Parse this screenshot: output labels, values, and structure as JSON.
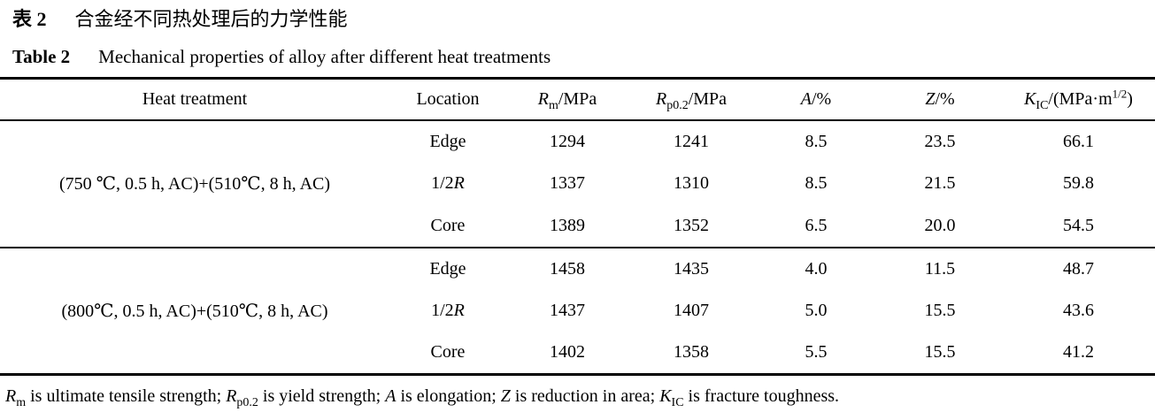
{
  "caption": {
    "zh": {
      "label": "表 2",
      "text": "合金经不同热处理后的力学性能"
    },
    "en": {
      "label": "Table 2",
      "text": "Mechanical properties of alloy after different heat treatments"
    }
  },
  "table": {
    "columns": [
      {
        "key": "treatment",
        "label": [
          {
            "t": "Heat treatment"
          }
        ]
      },
      {
        "key": "location",
        "label": [
          {
            "t": "Location"
          }
        ]
      },
      {
        "key": "rm",
        "label": [
          {
            "t": "R",
            "s": "i"
          },
          {
            "t": "m",
            "s": "sub"
          },
          {
            "t": "/MPa"
          }
        ]
      },
      {
        "key": "rp02",
        "label": [
          {
            "t": "R",
            "s": "i"
          },
          {
            "t": "p0.2",
            "s": "sub"
          },
          {
            "t": "/MPa"
          }
        ]
      },
      {
        "key": "a",
        "label": [
          {
            "t": "A",
            "s": "i"
          },
          {
            "t": "/%"
          }
        ]
      },
      {
        "key": "z",
        "label": [
          {
            "t": "Z",
            "s": "i"
          },
          {
            "t": "/%"
          }
        ]
      },
      {
        "key": "kic",
        "label": [
          {
            "t": "K",
            "s": "i"
          },
          {
            "t": "IC",
            "s": "sub"
          },
          {
            "t": "/(MPa·m"
          },
          {
            "t": "1/2",
            "s": "sup"
          },
          {
            "t": ")"
          }
        ]
      }
    ],
    "groups": [
      {
        "treatment": "(750 ℃, 0.5 h, AC)+(510℃, 8 h, AC)",
        "rows": [
          {
            "location": [
              {
                "t": "Edge"
              }
            ],
            "rm": "1294",
            "rp02": "1241",
            "a": "8.5",
            "z": "23.5",
            "kic": "66.1"
          },
          {
            "location": [
              {
                "t": "1/2"
              },
              {
                "t": "R",
                "s": "i"
              }
            ],
            "rm": "1337",
            "rp02": "1310",
            "a": "8.5",
            "z": "21.5",
            "kic": "59.8"
          },
          {
            "location": [
              {
                "t": "Core"
              }
            ],
            "rm": "1389",
            "rp02": "1352",
            "a": "6.5",
            "z": "20.0",
            "kic": "54.5"
          }
        ]
      },
      {
        "treatment": "(800℃, 0.5 h, AC)+(510℃, 8 h, AC)",
        "rows": [
          {
            "location": [
              {
                "t": "Edge"
              }
            ],
            "rm": "1458",
            "rp02": "1435",
            "a": "4.0",
            "z": "11.5",
            "kic": "48.7"
          },
          {
            "location": [
              {
                "t": "1/2"
              },
              {
                "t": "R",
                "s": "i"
              }
            ],
            "rm": "1437",
            "rp02": "1407",
            "a": "5.0",
            "z": "15.5",
            "kic": "43.6"
          },
          {
            "location": [
              {
                "t": "Core"
              }
            ],
            "rm": "1402",
            "rp02": "1358",
            "a": "5.5",
            "z": "15.5",
            "kic": "41.2"
          }
        ]
      }
    ],
    "footnote": [
      {
        "t": "R",
        "s": "i"
      },
      {
        "t": "m",
        "s": "sub"
      },
      {
        "t": " is ultimate tensile strength; "
      },
      {
        "t": "R",
        "s": "i"
      },
      {
        "t": "p0.2",
        "s": "sub"
      },
      {
        "t": " is yield strength; "
      },
      {
        "t": "A",
        "s": "i"
      },
      {
        "t": " is elongation; "
      },
      {
        "t": "Z",
        "s": "i"
      },
      {
        "t": " is reduction in area; "
      },
      {
        "t": "K",
        "s": "i"
      },
      {
        "t": "IC",
        "s": "sub"
      },
      {
        "t": " is fracture toughness."
      }
    ]
  }
}
